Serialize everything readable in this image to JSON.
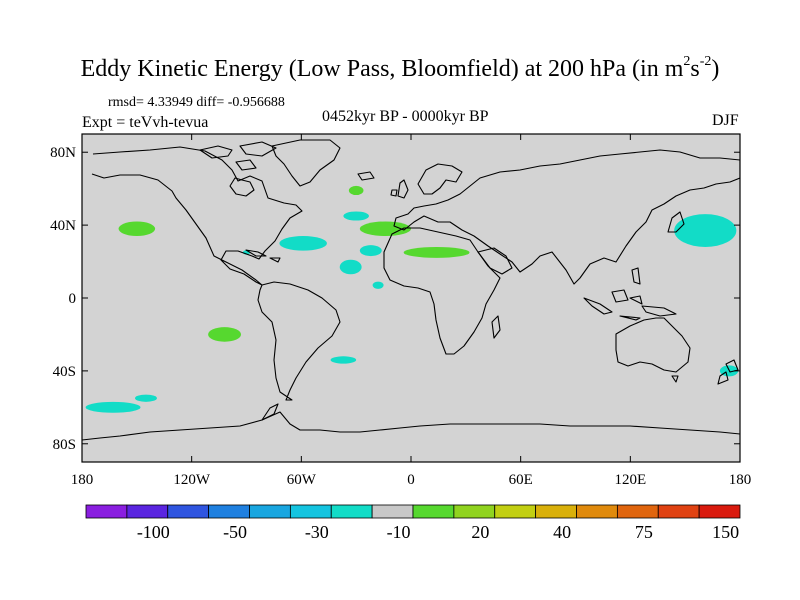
{
  "title": {
    "main": "Eddy Kinetic Energy (Low Pass, Bloomfield) at 200 hPa (in m",
    "sup1": "2",
    "mid": "s",
    "sup2": "-2",
    "close": ")"
  },
  "stats": "rmsd= 4.33949 diff= -0.956688",
  "experiment": "Expt = teVvh-tevua",
  "period": "0452kyr BP - 0000kyr BP",
  "season": "DJF",
  "map": {
    "projection": "cylindrical-equidistant",
    "lon_range": [
      -180,
      180
    ],
    "lat_range": [
      -90,
      90
    ],
    "land_fill": "#d3d3d3",
    "coast_color": "#000000",
    "x_ticks": [
      {
        "lon": -180,
        "label": "180"
      },
      {
        "lon": -120,
        "label": "120W"
      },
      {
        "lon": -60,
        "label": "60W"
      },
      {
        "lon": 0,
        "label": "0"
      },
      {
        "lon": 60,
        "label": "60E"
      },
      {
        "lon": 120,
        "label": "120E"
      },
      {
        "lon": 180,
        "label": "180"
      }
    ],
    "y_ticks": [
      {
        "lat": 80,
        "label": "80N"
      },
      {
        "lat": 40,
        "label": "40N"
      },
      {
        "lat": 0,
        "label": "0"
      },
      {
        "lat": -40,
        "label": "40S"
      },
      {
        "lat": -80,
        "label": "80S"
      }
    ]
  },
  "colorbar": {
    "colors": [
      "#8a1ee0",
      "#5a25e0",
      "#2f55e0",
      "#1f80e0",
      "#19a6e0",
      "#14c4e0",
      "#12dcc7",
      "#c8c8c8",
      "#56d82f",
      "#90d31f",
      "#c2cf12",
      "#d9b00a",
      "#e08a0c",
      "#e0650e",
      "#e04212",
      "#d91a0e"
    ],
    "labels": [
      {
        "boundary": 2,
        "text": "-100"
      },
      {
        "boundary": 4,
        "text": "-50"
      },
      {
        "boundary": 6,
        "text": "-30"
      },
      {
        "boundary": 8,
        "text": "-10"
      },
      {
        "boundary": 10,
        "text": "20"
      },
      {
        "boundary": 12,
        "text": "40"
      },
      {
        "boundary": 14,
        "text": "75"
      },
      {
        "boundary": 16,
        "text": "150"
      }
    ]
  },
  "anomalies": [
    {
      "name": "central-pacific-north",
      "lon": -150,
      "lat": 38,
      "rlon": 10,
      "rlat": 4,
      "color": "#56d82f"
    },
    {
      "name": "gulf-of-mexico",
      "lon": -90,
      "lat": 25,
      "rlon": 2,
      "rlat": 1.2,
      "color": "#12dcc7"
    },
    {
      "name": "western-atlantic",
      "lon": -59,
      "lat": 30,
      "rlon": 13,
      "rlat": 4,
      "color": "#12dcc7"
    },
    {
      "name": "mid-atlantic-south",
      "lon": -33,
      "lat": 17,
      "rlon": 6,
      "rlat": 4,
      "color": "#12dcc7"
    },
    {
      "name": "atlantic-tropics",
      "lon": -18,
      "lat": 7,
      "rlon": 3,
      "rlat": 2,
      "color": "#12dcc7"
    },
    {
      "name": "north-atlantic-small",
      "lon": -30,
      "lat": 45,
      "rlon": 7,
      "rlat": 2.5,
      "color": "#12dcc7"
    },
    {
      "name": "iceland-region",
      "lon": -30,
      "lat": 59,
      "rlon": 4,
      "rlat": 2.5,
      "color": "#56d82f"
    },
    {
      "name": "iberia-atlantic",
      "lon": -14,
      "lat": 38,
      "rlon": 14,
      "rlat": 4,
      "color": "#56d82f"
    },
    {
      "name": "north-africa",
      "lon": 14,
      "lat": 25,
      "rlon": 18,
      "rlat": 3,
      "color": "#56d82f"
    },
    {
      "name": "caribbean-band",
      "lon": -22,
      "lat": 26,
      "rlon": 6,
      "rlat": 3,
      "color": "#12dcc7"
    },
    {
      "name": "western-north-pacific",
      "lon": 161,
      "lat": 37,
      "rlon": 17,
      "rlat": 9,
      "color": "#12dcc7"
    },
    {
      "name": "south-east-pacific",
      "lon": -102,
      "lat": -20,
      "rlon": 9,
      "rlat": 4,
      "color": "#56d82f"
    },
    {
      "name": "south-atlantic",
      "lon": -37,
      "lat": -34,
      "rlon": 7,
      "rlat": 2,
      "color": "#12dcc7"
    },
    {
      "name": "southern-pacific-west",
      "lon": -163,
      "lat": -60,
      "rlon": 15,
      "rlat": 3,
      "color": "#12dcc7"
    },
    {
      "name": "southern-pacific-east",
      "lon": -145,
      "lat": -55,
      "rlon": 6,
      "rlat": 2,
      "color": "#12dcc7"
    },
    {
      "name": "new-zealand",
      "lon": 174,
      "lat": -40,
      "rlon": 5,
      "rlat": 3,
      "color": "#12dcc7"
    }
  ]
}
